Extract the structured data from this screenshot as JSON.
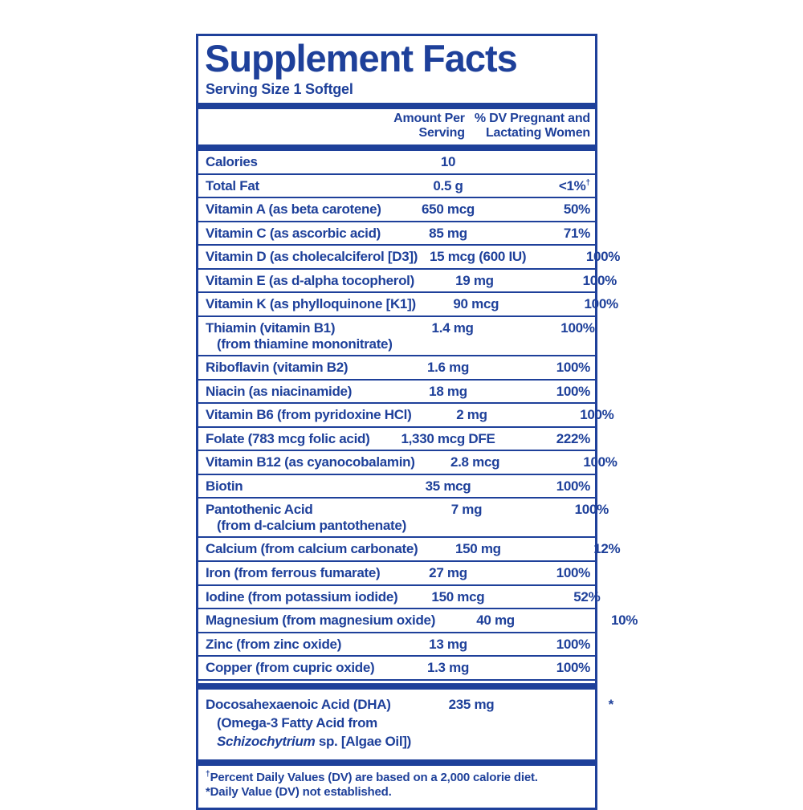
{
  "colors": {
    "blue": "#1e409a",
    "background": "#ffffff"
  },
  "label": {
    "title": "Supplement Facts",
    "serving_size": "Serving Size 1 Softgel",
    "header": {
      "amount_line1": "Amount Per",
      "amount_line2": "Serving",
      "dv_line1": "% DV Pregnant and",
      "dv_line2": "Lactating Women"
    },
    "rows": [
      {
        "name": "Calories",
        "amount": "10",
        "dv": ""
      },
      {
        "name": "Total Fat",
        "amount": "0.5 g",
        "dv": "<1%",
        "dv_sup": "†"
      },
      {
        "name": "Vitamin A (as beta carotene)",
        "amount": "650 mcg",
        "dv": "50%"
      },
      {
        "name": "Vitamin C (as ascorbic acid)",
        "amount": "85 mg",
        "dv": "71%"
      },
      {
        "name": "Vitamin D (as cholecalciferol [D3])",
        "amount": "15 mcg (600 IU)",
        "dv": "100%"
      },
      {
        "name": "Vitamin E (as d-alpha tocopherol)",
        "amount": "19 mg",
        "dv": "100%"
      },
      {
        "name": "Vitamin K (as phylloquinone [K1])",
        "amount": "90 mcg",
        "dv": "100%"
      },
      {
        "name": "Thiamin (vitamin B1)",
        "name2": "(from thiamine mononitrate)",
        "amount": "1.4 mg",
        "dv": "100%"
      },
      {
        "name": "Riboflavin (vitamin B2)",
        "amount": "1.6 mg",
        "dv": "100%"
      },
      {
        "name": "Niacin (as niacinamide)",
        "amount": "18 mg",
        "dv": "100%"
      },
      {
        "name": "Vitamin B6 (from pyridoxine HCl)",
        "amount": "2 mg",
        "dv": "100%"
      },
      {
        "name": "Folate (783 mcg folic acid)",
        "amount": "1,330 mcg DFE",
        "dv": "222%"
      },
      {
        "name": "Vitamin B12 (as cyanocobalamin)",
        "amount": "2.8 mcg",
        "dv": "100%"
      },
      {
        "name": "Biotin",
        "amount": "35 mcg",
        "dv": "100%"
      },
      {
        "name": "Pantothenic Acid",
        "name2": "(from d-calcium pantothenate)",
        "amount": "7 mg",
        "dv": "100%"
      },
      {
        "name": "Calcium (from calcium carbonate)",
        "amount": "150 mg",
        "dv": "12%"
      },
      {
        "name": "Iron (from ferrous fumarate)",
        "amount": "27 mg",
        "dv": "100%"
      },
      {
        "name": "Iodine (from potassium iodide)",
        "amount": "150 mcg",
        "dv": "52%"
      },
      {
        "name": "Magnesium (from magnesium oxide)",
        "amount": "40 mg",
        "dv": "10%"
      },
      {
        "name": "Zinc (from zinc oxide)",
        "amount": "13 mg",
        "dv": "100%"
      },
      {
        "name": "Copper (from cupric oxide)",
        "amount": "1.3 mg",
        "dv": "100%"
      }
    ],
    "dha": {
      "line1": "Docosahexaenoic Acid (DHA)",
      "line2": "(Omega-3 Fatty Acid from",
      "line3_italic": "Schizochytrium",
      "line3_rest": " sp. [Algae Oil])",
      "amount": "235 mg",
      "dv": "*"
    },
    "footnotes": [
      {
        "sup": "†",
        "text": "Percent Daily Values (DV) are based on a 2,000 calorie diet."
      },
      {
        "sup": "",
        "text": "*Daily Value (DV) not established."
      }
    ]
  }
}
